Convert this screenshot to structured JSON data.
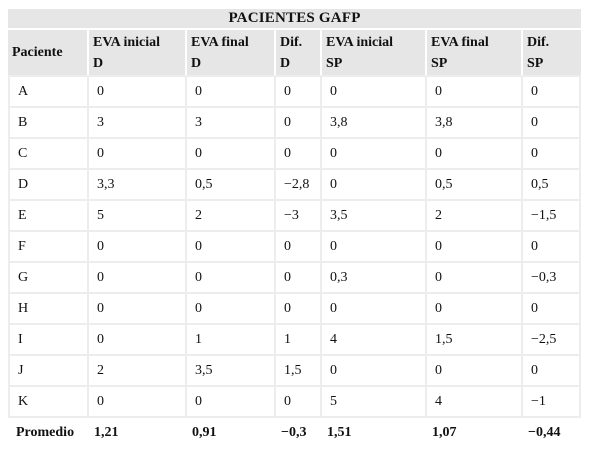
{
  "title": "PACIENTES GAFP",
  "columns": [
    {
      "line1": "Paciente",
      "line2": ""
    },
    {
      "line1": "EVA inicial",
      "line2": "D"
    },
    {
      "line1": "EVA final",
      "line2": "D"
    },
    {
      "line1": "Dif.",
      "line2": "D"
    },
    {
      "line1": "EVA inicial",
      "line2": "SP"
    },
    {
      "line1": "EVA final",
      "line2": "SP"
    },
    {
      "line1": "Dif.",
      "line2": "SP"
    }
  ],
  "rows": [
    [
      "A",
      "0",
      "0",
      "0",
      "0",
      "0",
      "0"
    ],
    [
      "B",
      "3",
      "3",
      "0",
      "3,8",
      "3,8",
      "0"
    ],
    [
      "C",
      "0",
      "0",
      "0",
      "0",
      "0",
      "0"
    ],
    [
      "D",
      "3,3",
      "0,5",
      "−2,8",
      "0",
      "0,5",
      "0,5"
    ],
    [
      "E",
      "5",
      "2",
      "−3",
      "3,5",
      "2",
      "−1,5"
    ],
    [
      "F",
      "0",
      "0",
      "0",
      "0",
      "0",
      "0"
    ],
    [
      "G",
      "0",
      "0",
      "0",
      "0,3",
      "0",
      "−0,3"
    ],
    [
      "H",
      "0",
      "0",
      "0",
      "0",
      "0",
      "0"
    ],
    [
      "I",
      "0",
      "1",
      "1",
      "4",
      "1,5",
      "−2,5"
    ],
    [
      "J",
      "2",
      "3,5",
      "1,5",
      "0",
      "0",
      "0"
    ],
    [
      "K",
      "0",
      "0",
      "0",
      "5",
      "4",
      "−1"
    ]
  ],
  "total": [
    "Promedio",
    "1,21",
    "0,91",
    "−0,3",
    "1,51",
    "1,07",
    "−0,44"
  ]
}
